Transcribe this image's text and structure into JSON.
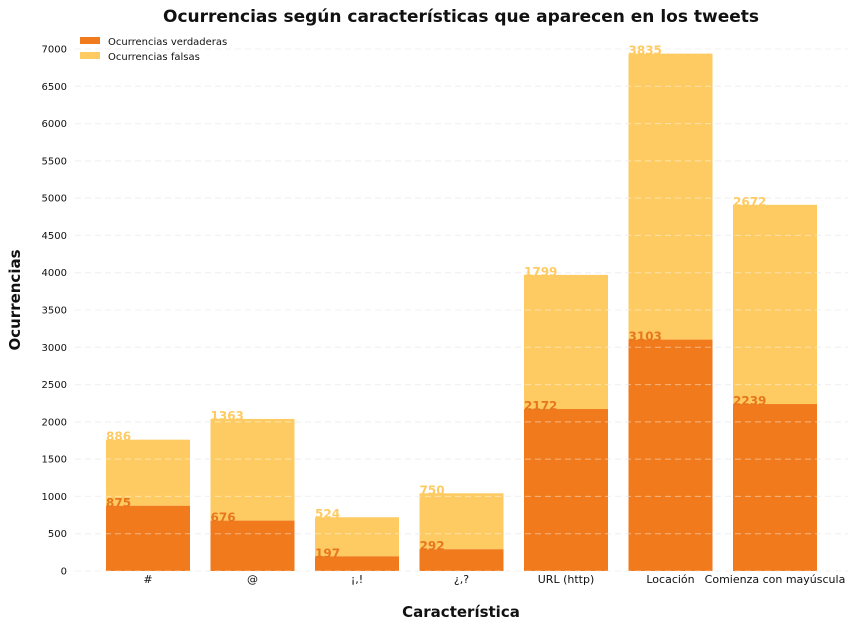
{
  "chart_data": {
    "type": "bar",
    "stacked": true,
    "title": "Ocurrencias según características que aparecen en los tweets",
    "xlabel": "Característica",
    "ylabel": "Ocurrencias",
    "categories": [
      "#",
      "@",
      "¡,!",
      "¿,?",
      "URL (http)",
      "Locación",
      "Comienza con mayúscula"
    ],
    "series": [
      {
        "name": "Ocurrencias verdaderas",
        "color": "#f07a1c",
        "values": [
          875,
          676,
          197,
          292,
          2172,
          3103,
          2239
        ]
      },
      {
        "name": "Ocurrencias falsas",
        "color": "#fecb63",
        "values": [
          886,
          1363,
          524,
          750,
          1799,
          3835,
          2672
        ]
      }
    ],
    "ylim": [
      0,
      7200
    ],
    "yticks": [
      0,
      500,
      1000,
      1500,
      2000,
      2500,
      3000,
      3500,
      4000,
      4500,
      5000,
      5500,
      6000,
      6500,
      7000
    ],
    "grid": true,
    "legend_position": "top-left"
  }
}
